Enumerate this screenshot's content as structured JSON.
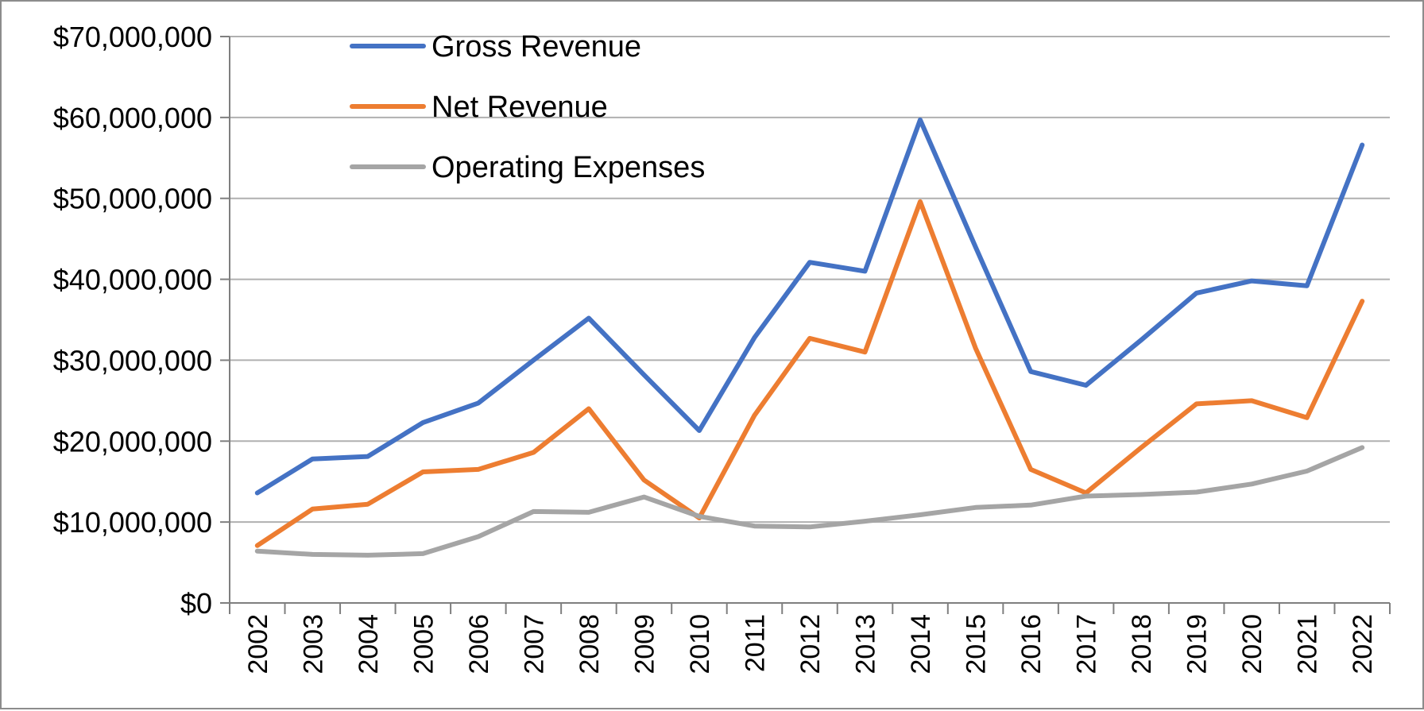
{
  "chart_data": {
    "type": "line",
    "title": "",
    "xlabel": "",
    "ylabel": "",
    "ylim": [
      0,
      70000000
    ],
    "y_ticks": [
      0,
      10000000,
      20000000,
      30000000,
      40000000,
      50000000,
      60000000,
      70000000
    ],
    "y_tick_labels": [
      "$0",
      "$10,000,000",
      "$20,000,000",
      "$30,000,000",
      "$40,000,000",
      "$50,000,000",
      "$60,000,000",
      "$70,000,000"
    ],
    "grid": true,
    "legend_position": "top-left",
    "categories": [
      "2002",
      "2003",
      "2004",
      "2005",
      "2006",
      "2007",
      "2008",
      "2009",
      "2010",
      "2011",
      "2012",
      "2013",
      "2014",
      "2015",
      "2016",
      "2017",
      "2018",
      "2019",
      "2020",
      "2021",
      "2022"
    ],
    "series": [
      {
        "name": "Gross Revenue",
        "color": "#4472C4",
        "values": [
          13600000,
          17800000,
          18100000,
          22300000,
          24700000,
          30000000,
          35200000,
          28200000,
          21300000,
          32800000,
          42100000,
          41000000,
          59700000,
          44000000,
          28600000,
          26900000,
          32500000,
          38300000,
          39800000,
          39200000,
          56600000
        ]
      },
      {
        "name": "Net Revenue",
        "color": "#ED7D31",
        "values": [
          7100000,
          11600000,
          12200000,
          16200000,
          16500000,
          18600000,
          24000000,
          15200000,
          10500000,
          23200000,
          32700000,
          31000000,
          49600000,
          31500000,
          16500000,
          13600000,
          19200000,
          24600000,
          25000000,
          22900000,
          37300000
        ]
      },
      {
        "name": "Operating Expenses",
        "color": "#A5A5A5",
        "values": [
          6400000,
          6000000,
          5900000,
          6100000,
          8200000,
          11300000,
          11200000,
          13100000,
          10700000,
          9500000,
          9400000,
          10100000,
          10900000,
          11800000,
          12100000,
          13200000,
          13400000,
          13700000,
          14700000,
          16300000,
          19200000
        ]
      }
    ]
  }
}
